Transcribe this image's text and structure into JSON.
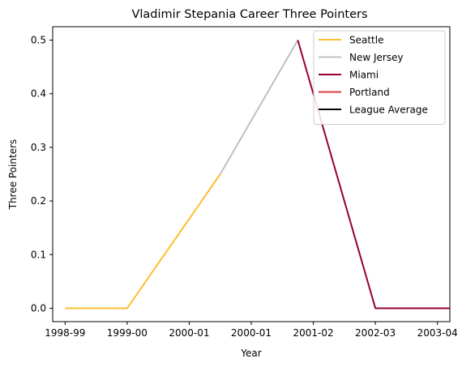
{
  "chart_data": {
    "type": "line",
    "title": "Vladimir Stepania Career Three Pointers",
    "xlabel": "Year",
    "ylabel": "Three Pointers",
    "x_ticks": [
      "1998-99",
      "1999-00",
      "2000-01",
      "2000-01",
      "2001-02",
      "2002-03",
      "2003-04"
    ],
    "x_range": [
      -0.2,
      6.2
    ],
    "ylim": [
      -0.025,
      0.525
    ],
    "y_ticks": [
      0.0,
      0.1,
      0.2,
      0.3,
      0.4,
      0.5
    ],
    "legend_position": "top-right",
    "grid": false,
    "series": [
      {
        "name": "Seattle",
        "color": "#FBC02D",
        "points": [
          [
            0,
            0.0
          ],
          [
            1,
            0.0
          ],
          [
            2.5,
            0.25
          ]
        ]
      },
      {
        "name": "New Jersey",
        "color": "#C0C0C0",
        "points": [
          [
            2.5,
            0.25
          ],
          [
            3.75,
            0.5
          ]
        ]
      },
      {
        "name": "Miami",
        "color": "#98002E",
        "points": [
          [
            3.75,
            0.5
          ],
          [
            5,
            0.0
          ],
          [
            6.25,
            0.0
          ]
        ]
      },
      {
        "name": "Portland",
        "color": "#E03A3E",
        "points": []
      },
      {
        "name": "League Average",
        "color": "#000000",
        "points": []
      }
    ]
  }
}
